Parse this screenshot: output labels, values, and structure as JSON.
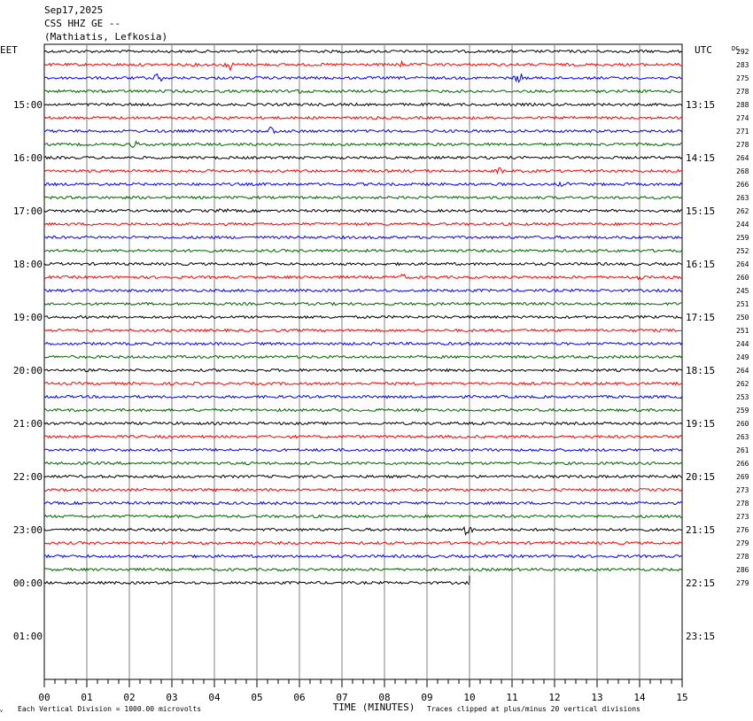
{
  "header": {
    "date": "Sep17,2025",
    "station": "CSS HHZ GE --",
    "location": "(Mathiatis, Lefkosia)"
  },
  "chart_data": {
    "type": "line",
    "title": "CSS HHZ GE --",
    "left_zone_label": "EET",
    "right_zone_label": "UTC",
    "dc_label": "DC",
    "xlabel": "TIME (MINUTES)",
    "x_ticks": [
      "00",
      "01",
      "02",
      "03",
      "04",
      "05",
      "06",
      "07",
      "08",
      "09",
      "10",
      "11",
      "12",
      "13",
      "14",
      "15"
    ],
    "xlim": [
      0,
      15
    ],
    "left_hour_labels": [
      "15:00",
      "16:00",
      "17:00",
      "18:00",
      "19:00",
      "20:00",
      "21:00",
      "22:00",
      "23:00",
      "00:00",
      "01:00"
    ],
    "right_hour_labels": [
      "13:15",
      "14:15",
      "15:15",
      "16:15",
      "17:15",
      "18:15",
      "19:15",
      "20:15",
      "21:15",
      "22:15",
      "23:15"
    ],
    "trace_colors": [
      "#000000",
      "#ff0000",
      "#0000ff",
      "#006400"
    ],
    "dc_offsets": [
      292,
      283,
      275,
      278,
      288,
      274,
      271,
      278,
      264,
      268,
      266,
      263,
      262,
      244,
      259,
      252,
      264,
      260,
      245,
      251,
      250,
      251,
      244,
      249,
      264,
      262,
      253,
      259,
      260,
      263,
      261,
      266,
      269,
      273,
      278,
      273,
      276,
      279,
      278,
      286,
      279
    ],
    "last_trace_end_minute": 10,
    "footer_left": "Each Vertical Division = 1000.00 microvolts",
    "footer_right": "Traces clipped at plus/minus 20 vertical divisions"
  }
}
